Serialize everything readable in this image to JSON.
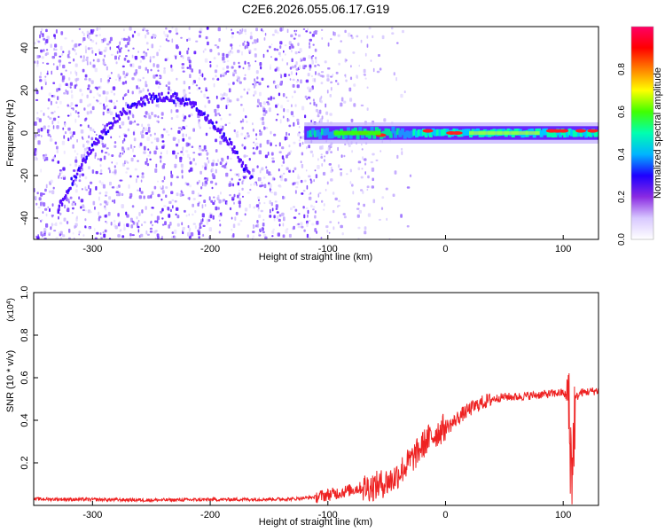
{
  "title": "C2E6.2026.055.06.17.G19",
  "chart_data": [
    {
      "type": "heatmap",
      "name": "spectrogram",
      "xlabel": "Height of straight line (km)",
      "ylabel": "Frequency (Hz)",
      "xlim": [
        -350,
        130
      ],
      "ylim": [
        -50,
        50
      ],
      "xticks": [
        -300,
        -200,
        -100,
        0,
        100
      ],
      "yticks": [
        -40,
        -20,
        0,
        20,
        40
      ],
      "colorbar": {
        "label": "Normalized spectral amplitude",
        "range": [
          0,
          1
        ],
        "ticks": [
          "0.0",
          "0.2",
          "0.4",
          "0.6",
          "0.8"
        ],
        "colors": [
          "#ffffff",
          "#d8c8ff",
          "#8a2be2",
          "#1e00ff",
          "#00b4ff",
          "#00ffb0",
          "#40ff00",
          "#ffff00",
          "#ff8000",
          "#ff0000",
          "#ff0066"
        ]
      },
      "features": {
        "arc": {
          "from_km": -330,
          "to_km": -165,
          "peak_km": -240,
          "peak_hz": 18,
          "start_hz": -35
        },
        "carrier": {
          "from_km": -120,
          "to_km": 130,
          "freq_hz": 0
        }
      }
    },
    {
      "type": "line",
      "name": "snr",
      "title": "",
      "xlabel": "Height of straight line (km)",
      "ylabel": "SNR (10 * v/v)",
      "scale_label": "(x10",
      "scale_exponent": "4",
      "scale_close": ")",
      "xlim": [
        -350,
        130
      ],
      "ylim": [
        0,
        1.0
      ],
      "xticks": [
        -300,
        -200,
        -100,
        0,
        100
      ],
      "yticks": [
        "0.2",
        "0.4",
        "0.6",
        "0.8",
        "1.0"
      ],
      "ytick_values": [
        0.2,
        0.4,
        0.6,
        0.8,
        1.0
      ],
      "series": [
        {
          "name": "SNR",
          "color": "#ee2222",
          "x": [
            -350,
            -250,
            -130,
            -110,
            -90,
            -75,
            -60,
            -45,
            -35,
            -25,
            -20,
            -15,
            -10,
            -5,
            0,
            5,
            10,
            20,
            30,
            40,
            50,
            60,
            80,
            100,
            104,
            106,
            108,
            110,
            115,
            130
          ],
          "y": [
            0.03,
            0.025,
            0.03,
            0.04,
            0.06,
            0.08,
            0.09,
            0.12,
            0.18,
            0.24,
            0.28,
            0.31,
            0.33,
            0.35,
            0.37,
            0.38,
            0.41,
            0.45,
            0.48,
            0.5,
            0.51,
            0.51,
            0.52,
            0.53,
            0.5,
            0.3,
            0.15,
            0.5,
            0.53,
            0.54
          ]
        }
      ]
    }
  ]
}
